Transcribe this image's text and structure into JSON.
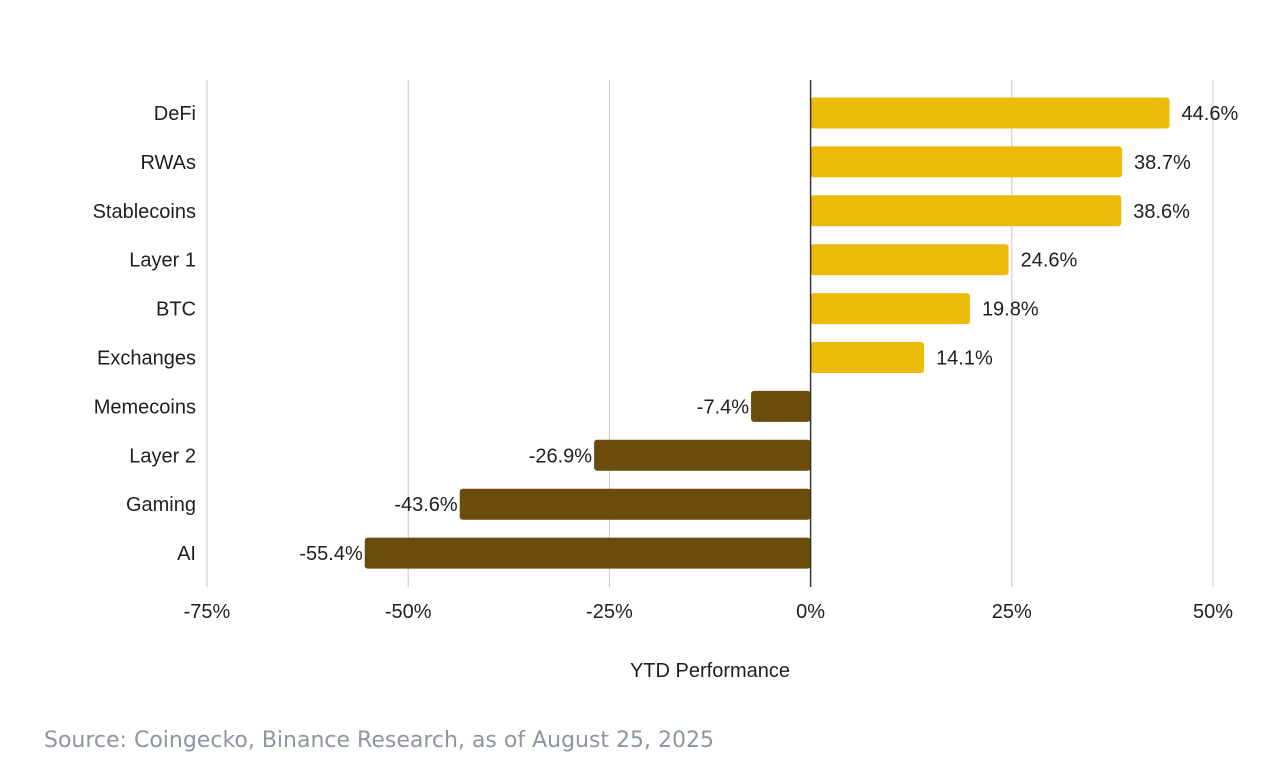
{
  "chart_data": {
    "type": "bar",
    "orientation": "horizontal",
    "categories": [
      "DeFi",
      "RWAs",
      "Stablecoins",
      "Layer 1",
      "BTC",
      "Exchanges",
      "Memecoins",
      "Layer 2",
      "Gaming",
      "AI"
    ],
    "values": [
      44.6,
      38.7,
      38.6,
      24.6,
      19.8,
      14.1,
      -7.4,
      -26.9,
      -43.6,
      -55.4
    ],
    "value_labels": [
      "44.6%",
      "38.7%",
      "38.6%",
      "24.6%",
      "19.8%",
      "14.1%",
      "-7.4%",
      "-26.9%",
      "-43.6%",
      "-55.4%"
    ],
    "xlabel": "YTD Performance",
    "ylabel": "",
    "xlim": [
      -75,
      50
    ],
    "x_ticks": [
      -75,
      -50,
      -25,
      0,
      25,
      50
    ],
    "x_tick_labels": [
      "-75%",
      "-50%",
      "-25%",
      "0%",
      "25%",
      "50%"
    ],
    "grid": "vertical",
    "legend": "none",
    "colors": {
      "positive": "#EBBA0B",
      "negative": "#6B4C0C",
      "grid": "#C8C8C8",
      "zero_line": "#333333"
    }
  },
  "source": "Source: Coingecko, Binance Research, as of August 25, 2025"
}
